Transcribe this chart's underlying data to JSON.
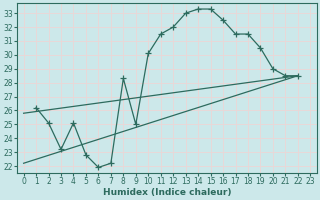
{
  "xlabel": "Humidex (Indice chaleur)",
  "bg_color": "#cce8ea",
  "grid_color": "#e8d8d8",
  "line_color": "#2d6b5e",
  "xlim": [
    -0.5,
    23.5
  ],
  "ylim": [
    21.5,
    33.7
  ],
  "xticks": [
    0,
    1,
    2,
    3,
    4,
    5,
    6,
    7,
    8,
    9,
    10,
    11,
    12,
    13,
    14,
    15,
    16,
    17,
    18,
    19,
    20,
    21,
    22,
    23
  ],
  "yticks": [
    22,
    23,
    24,
    25,
    26,
    27,
    28,
    29,
    30,
    31,
    32,
    33
  ],
  "curve_x": [
    1,
    2,
    3,
    4,
    5,
    6,
    7,
    8,
    9,
    10,
    11,
    12,
    13,
    14,
    15,
    16,
    17,
    18,
    19,
    20,
    21,
    22
  ],
  "curve_y": [
    26.2,
    25.1,
    23.2,
    25.1,
    22.8,
    21.9,
    22.2,
    28.3,
    25.0,
    30.1,
    31.5,
    32.0,
    33.0,
    33.3,
    33.3,
    32.5,
    31.5,
    31.5,
    30.5,
    29.0,
    28.5,
    28.5
  ],
  "line1_x": [
    0,
    22
  ],
  "line1_y": [
    25.8,
    28.5
  ],
  "line2_x": [
    0,
    22
  ],
  "line2_y": [
    22.2,
    28.5
  ],
  "tick_fontsize": 5.5,
  "xlabel_fontsize": 6.5
}
